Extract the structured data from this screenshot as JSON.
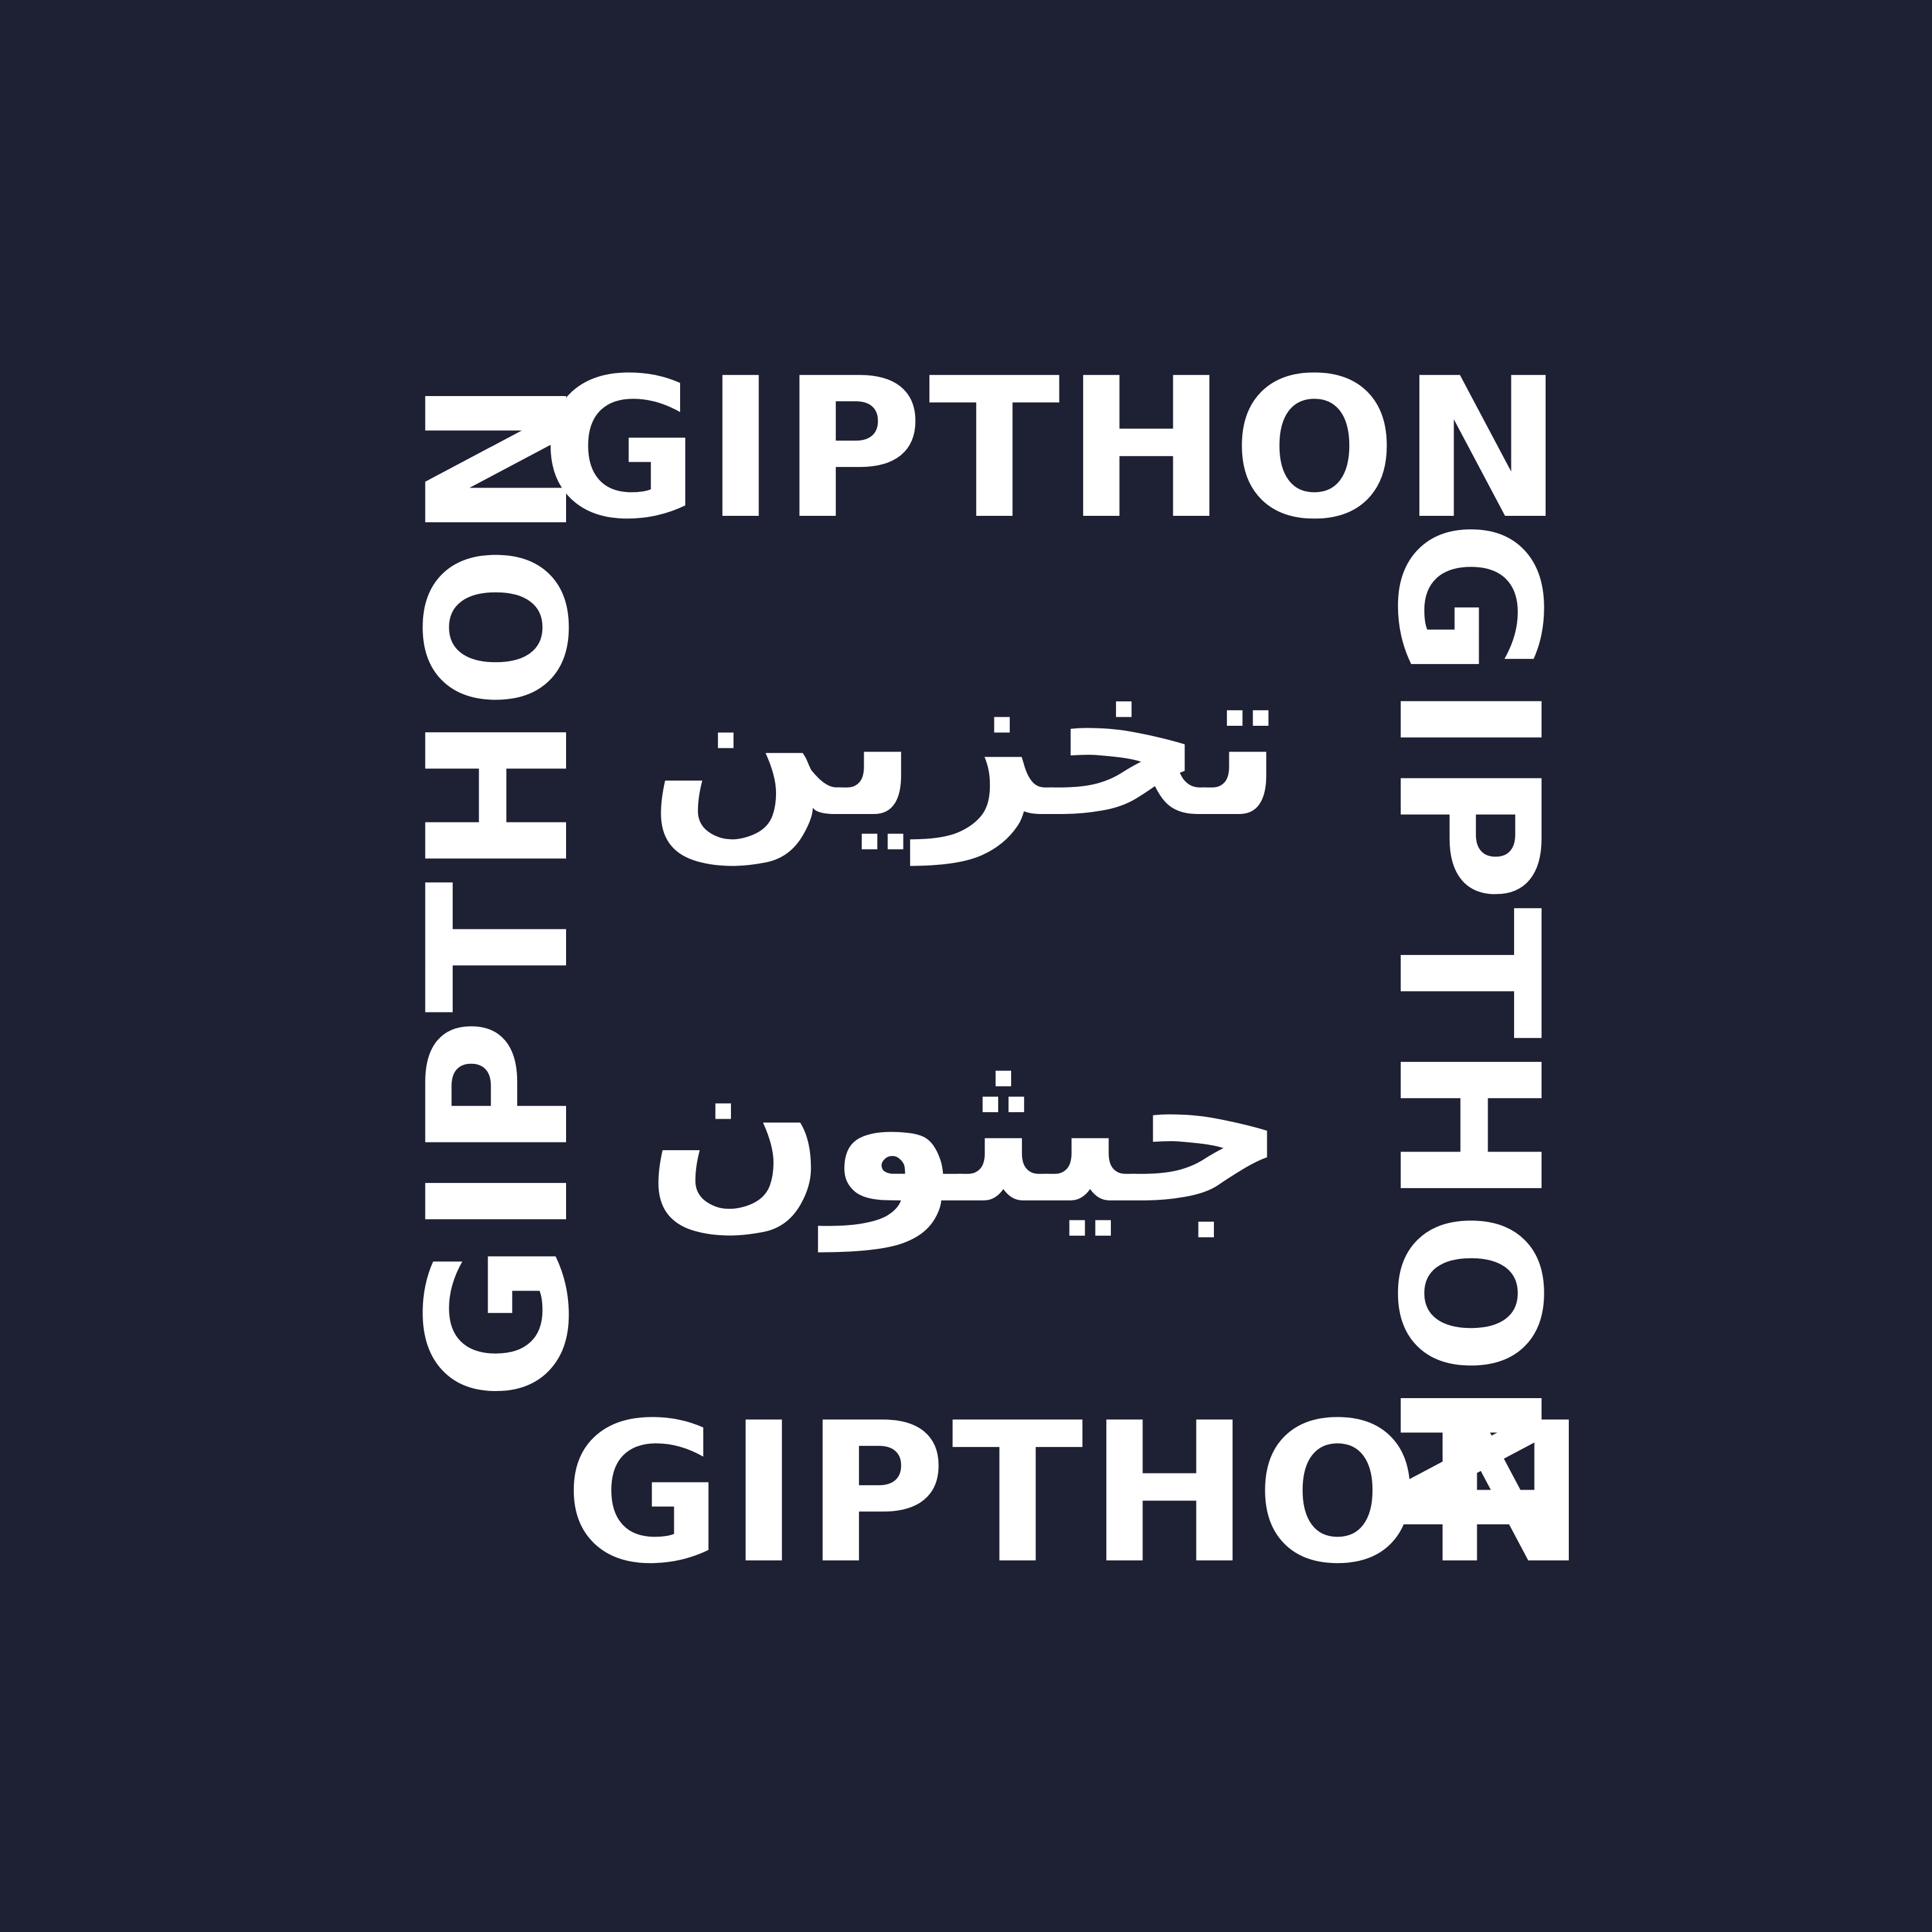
{
  "background_color": "#1E2034",
  "text_color": "#FFFFFF",
  "wordmarks": {
    "top": "GIPTHON",
    "right": "GIPTHON",
    "bottom": "GIPTHON",
    "left": "GIPTHON"
  },
  "arabic": {
    "line1": "تخزين",
    "line2": "جيثون"
  }
}
